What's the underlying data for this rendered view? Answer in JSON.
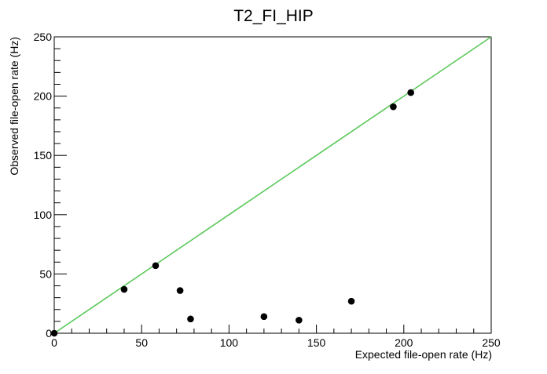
{
  "chart_data": {
    "type": "scatter",
    "title": "T2_FI_HIP",
    "xlabel": "Expected file-open rate (Hz)",
    "ylabel": "Observed file-open rate (Hz)",
    "xlim": [
      0,
      250
    ],
    "ylim": [
      0,
      250
    ],
    "x_ticks": [
      0,
      50,
      100,
      150,
      200,
      250
    ],
    "y_ticks": [
      0,
      50,
      100,
      150,
      200,
      250
    ],
    "grid": false,
    "points": [
      {
        "x": 0,
        "y": 0
      },
      {
        "x": 40,
        "y": 37
      },
      {
        "x": 58,
        "y": 57
      },
      {
        "x": 72,
        "y": 36
      },
      {
        "x": 78,
        "y": 12
      },
      {
        "x": 120,
        "y": 14
      },
      {
        "x": 140,
        "y": 11
      },
      {
        "x": 170,
        "y": 27
      },
      {
        "x": 194,
        "y": 191
      },
      {
        "x": 204,
        "y": 203
      }
    ],
    "reference_line": {
      "x": [
        0,
        250
      ],
      "y": [
        0,
        250
      ]
    },
    "colors": {
      "points": "#000000",
      "reference_line": "#5ac85a",
      "axes": "#000000"
    }
  }
}
